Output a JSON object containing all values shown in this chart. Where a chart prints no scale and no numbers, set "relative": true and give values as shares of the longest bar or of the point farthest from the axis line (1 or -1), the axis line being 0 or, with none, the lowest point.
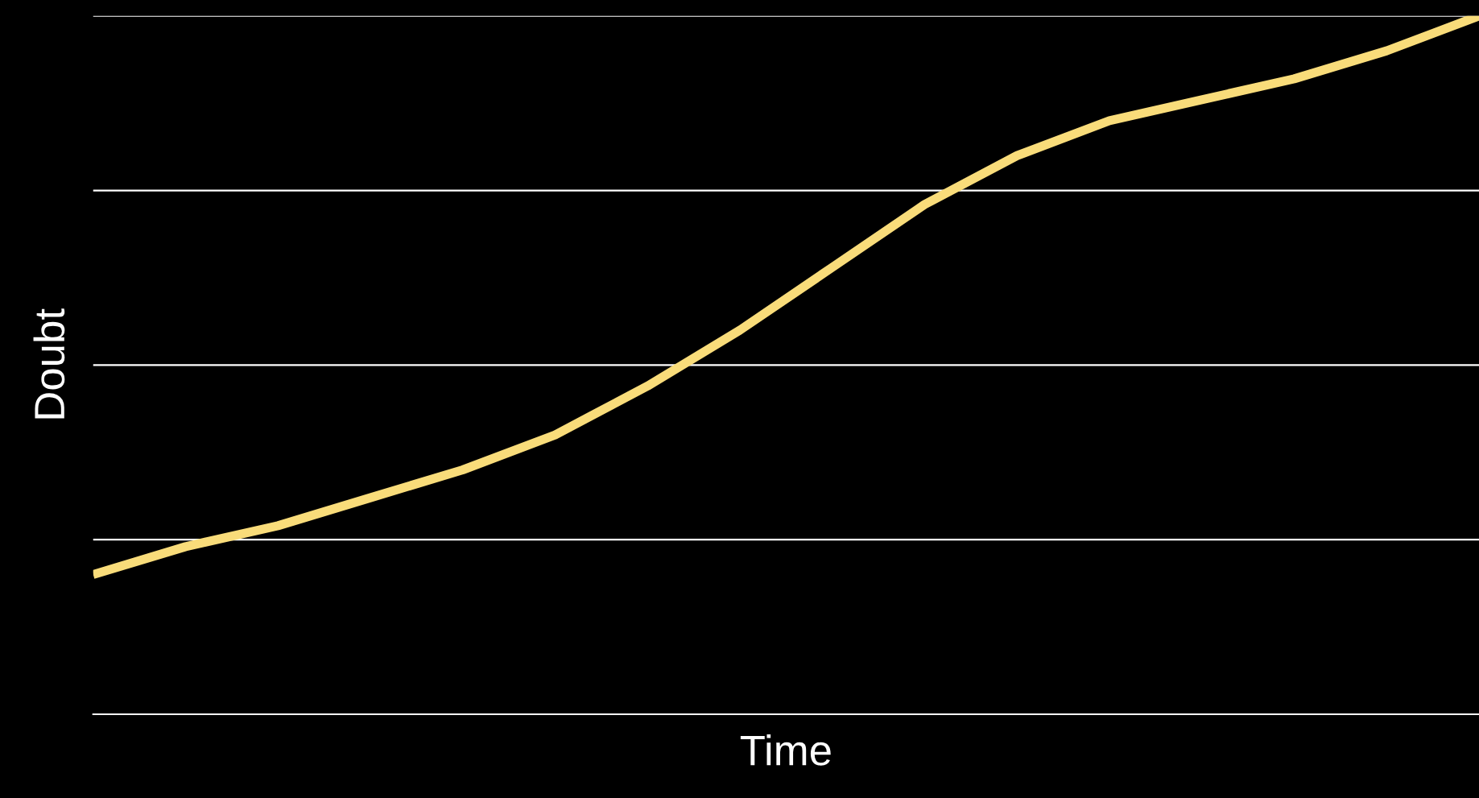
{
  "chart_data": {
    "type": "line",
    "xlabel": "Time",
    "ylabel": "Doubt",
    "relative": true,
    "grid": "y",
    "legend": false,
    "tick_labels": false,
    "categories": [
      null,
      null,
      null,
      null,
      null,
      null,
      null,
      null,
      null,
      null,
      null,
      null,
      null,
      null,
      null,
      null
    ],
    "series": [
      {
        "color": "#f9dc7a",
        "values": [
          0.2,
          0.24,
          0.27,
          0.31,
          0.35,
          0.4,
          0.47,
          0.55,
          0.64,
          0.73,
          0.8,
          0.85,
          0.88,
          0.91,
          0.95,
          1.0
        ]
      }
    ]
  }
}
